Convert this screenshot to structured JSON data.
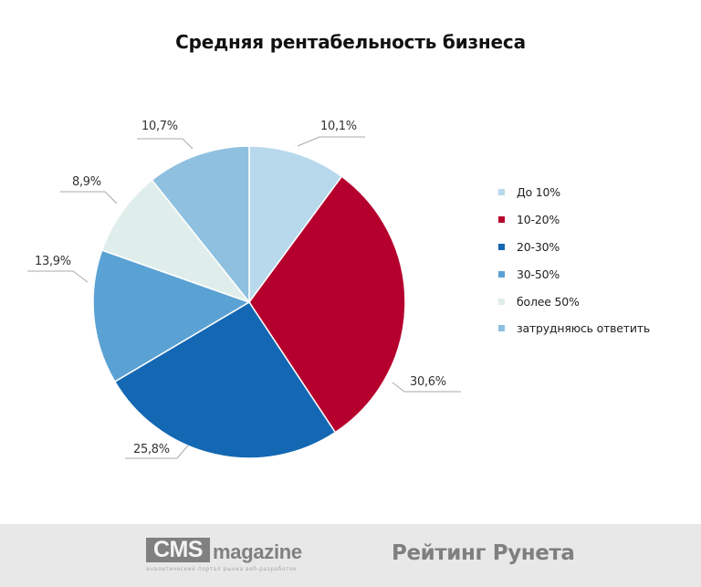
{
  "chart_data": {
    "type": "pie",
    "title": "Средняя рентабельность бизнеса",
    "categories": [
      "До 10%",
      "10-20%",
      "20-30%",
      "30-50%",
      "более 50%",
      "затрудняюсь ответить"
    ],
    "values": [
      10.1,
      30.6,
      25.8,
      13.9,
      8.9,
      10.7
    ],
    "value_labels": [
      "10,1%",
      "30,6%",
      "25,8%",
      "13,9%",
      "8,9%",
      "10,7%"
    ],
    "colors": [
      "#b8d9ec",
      "#b5002d",
      "#1468b3",
      "#5ba2d4",
      "#dfeeea",
      "#8fc0e0"
    ],
    "start_angle": "12 o'clock",
    "direction": "clockwise",
    "legend_position": "right"
  },
  "title": "Средняя рентабельность бизнеса",
  "legend": {
    "items": [
      {
        "label": "До 10%",
        "color": "#b8d9ec"
      },
      {
        "label": "10-20%",
        "color": "#b5002d"
      },
      {
        "label": "20-30%",
        "color": "#1468b3"
      },
      {
        "label": "30-50%",
        "color": "#5ba2d4"
      },
      {
        "label": "более 50%",
        "color": "#dfeeea"
      },
      {
        "label": "затрудняюсь ответить",
        "color": "#8fc0e0"
      }
    ]
  },
  "labels": {
    "l0": "10,1%",
    "l1": "30,6%",
    "l2": "25,8%",
    "l3": "13,9%",
    "l4": "8,9%",
    "l5": "10,7%"
  },
  "footer": {
    "cms_logo_box": "CMS",
    "cms_logo_word": "magazine",
    "cms_tagline": "аналитический портал рынка веб-разработок",
    "rating_text": "Рейтинг Рунета",
    "background": "#e8e8e8"
  }
}
